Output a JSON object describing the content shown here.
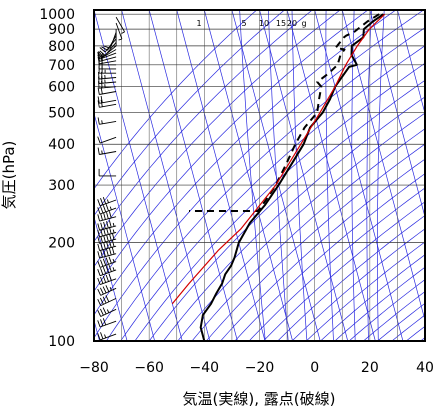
{
  "chart_data": {
    "type": "line",
    "chart_kind": "skew-T log-P aerological diagram",
    "title": "",
    "xlabel": "気温(実線), 露点(破線)",
    "ylabel": "気圧(hPa)",
    "xlim": [
      -80,
      40
    ],
    "ylim": [
      1030,
      100
    ],
    "y_scale": "log",
    "x_ticks": [
      "−80",
      "−60",
      "−40",
      "−20",
      "0",
      "20",
      "40"
    ],
    "x_tick_values": [
      -80,
      -60,
      -40,
      -20,
      0,
      20,
      40
    ],
    "y_ticks": [
      "100",
      "200",
      "300",
      "400",
      "500",
      "600",
      "700",
      "800",
      "900",
      "1000"
    ],
    "y_tick_values": [
      100,
      200,
      300,
      400,
      500,
      600,
      700,
      800,
      900,
      1000
    ],
    "mixing_ratio_labels": [
      "1",
      "5",
      "10",
      "15",
      "20",
      "g"
    ],
    "grid": true,
    "colors": {
      "temperature": "#000000",
      "dewpoint": "#000000",
      "parcel": "#d40000",
      "skew_grid": "#2a2ae0",
      "grid": "#000000"
    },
    "series": [
      {
        "style": "solid",
        "points": [
          {
            "t": 24.5,
            "p": 1000
          },
          {
            "t": 20,
            "p": 950
          },
          {
            "t": 16,
            "p": 900
          },
          {
            "t": 15,
            "p": 850
          },
          {
            "t": 10,
            "p": 800
          },
          {
            "t": 9,
            "p": 750
          },
          {
            "t": 10,
            "p": 700
          },
          {
            "t": 7,
            "p": 690
          },
          {
            "t": 0,
            "p": 600
          },
          {
            "t": -3,
            "p": 550
          },
          {
            "t": -7,
            "p": 500
          },
          {
            "t": -13,
            "p": 450
          },
          {
            "t": -17,
            "p": 400
          },
          {
            "t": -23,
            "p": 350
          },
          {
            "t": -30,
            "p": 300
          },
          {
            "t": -37,
            "p": 260
          },
          {
            "t": -44,
            "p": 230
          },
          {
            "t": -50,
            "p": 200
          },
          {
            "t": -53,
            "p": 180
          },
          {
            "t": -55,
            "p": 170
          },
          {
            "t": -58,
            "p": 160
          },
          {
            "t": -60,
            "p": 150
          },
          {
            "t": -63,
            "p": 140
          },
          {
            "t": -66,
            "p": 130
          },
          {
            "t": -70,
            "p": 120
          },
          {
            "t": -71,
            "p": 115
          },
          {
            "t": -72,
            "p": 110
          },
          {
            "t": -72,
            "p": 105
          },
          {
            "t": -72,
            "p": 100
          }
        ]
      },
      {
        "style": "dashed",
        "points": [
          {
            "t": 23,
            "p": 1000
          },
          {
            "t": 18,
            "p": 950
          },
          {
            "t": 12,
            "p": 880
          },
          {
            "t": 9,
            "p": 860
          },
          {
            "t": 8,
            "p": 850
          },
          {
            "t": 4,
            "p": 790
          },
          {
            "t": 7,
            "p": 780
          },
          {
            "t": 5,
            "p": 750
          },
          {
            "t": 3,
            "p": 700
          },
          {
            "t": -1,
            "p": 660
          },
          {
            "t": -6,
            "p": 620
          },
          {
            "t": -5,
            "p": 600
          },
          {
            "t": -7,
            "p": 550
          },
          {
            "t": -9,
            "p": 500
          },
          {
            "t": -15,
            "p": 450
          },
          {
            "t": -20,
            "p": 400
          },
          {
            "t": -25,
            "p": 350
          },
          {
            "t": -31,
            "p": 300
          },
          {
            "t": -36,
            "p": 270
          },
          {
            "t": -40,
            "p": 250
          },
          {
            "t": -65,
            "p": 250
          }
        ]
      },
      {
        "style": "solid-red",
        "points": [
          {
            "t": 25,
            "p": 1000
          },
          {
            "t": 18,
            "p": 900
          },
          {
            "t": 12,
            "p": 800
          },
          {
            "t": 6,
            "p": 700
          },
          {
            "t": 0,
            "p": 600
          },
          {
            "t": -8,
            "p": 500
          },
          {
            "t": -18,
            "p": 400
          },
          {
            "t": -31,
            "p": 300
          },
          {
            "t": -48,
            "p": 220
          },
          {
            "t": -58,
            "p": 190
          },
          {
            "t": -72,
            "p": 150
          },
          {
            "t": -80,
            "p": 130
          }
        ]
      }
    ],
    "wind_barbs": [
      {
        "p": 105,
        "dir": 250,
        "spd": 25
      },
      {
        "p": 115,
        "dir": 250,
        "spd": 30
      },
      {
        "p": 125,
        "dir": 245,
        "spd": 35
      },
      {
        "p": 135,
        "dir": 245,
        "spd": 40
      },
      {
        "p": 145,
        "dir": 245,
        "spd": 45
      },
      {
        "p": 155,
        "dir": 250,
        "spd": 50
      },
      {
        "p": 165,
        "dir": 250,
        "spd": 55
      },
      {
        "p": 175,
        "dir": 250,
        "spd": 55
      },
      {
        "p": 185,
        "dir": 255,
        "spd": 60
      },
      {
        "p": 195,
        "dir": 255,
        "spd": 60
      },
      {
        "p": 205,
        "dir": 255,
        "spd": 60
      },
      {
        "p": 215,
        "dir": 255,
        "spd": 55
      },
      {
        "p": 225,
        "dir": 255,
        "spd": 55
      },
      {
        "p": 240,
        "dir": 255,
        "spd": 50
      },
      {
        "p": 255,
        "dir": 250,
        "spd": 45
      },
      {
        "p": 270,
        "dir": 250,
        "spd": 35
      },
      {
        "p": 320,
        "dir": 270,
        "spd": 10
      },
      {
        "p": 380,
        "dir": 260,
        "spd": 15
      },
      {
        "p": 420,
        "dir": 250,
        "spd": 10
      },
      {
        "p": 470,
        "dir": 260,
        "spd": 15
      },
      {
        "p": 530,
        "dir": 260,
        "spd": 20
      },
      {
        "p": 545,
        "dir": 260,
        "spd": 20
      },
      {
        "p": 580,
        "dir": 260,
        "spd": 20
      },
      {
        "p": 600,
        "dir": 265,
        "spd": 25
      },
      {
        "p": 620,
        "dir": 265,
        "spd": 25
      },
      {
        "p": 640,
        "dir": 265,
        "spd": 25
      },
      {
        "p": 660,
        "dir": 270,
        "spd": 25
      },
      {
        "p": 680,
        "dir": 270,
        "spd": 20
      },
      {
        "p": 700,
        "dir": 270,
        "spd": 20
      },
      {
        "p": 720,
        "dir": 260,
        "spd": 20
      },
      {
        "p": 740,
        "dir": 255,
        "spd": 20
      },
      {
        "p": 760,
        "dir": 250,
        "spd": 15
      },
      {
        "p": 780,
        "dir": 240,
        "spd": 15
      },
      {
        "p": 800,
        "dir": 230,
        "spd": 10
      },
      {
        "p": 820,
        "dir": 220,
        "spd": 10
      },
      {
        "p": 840,
        "dir": 220,
        "spd": 10
      },
      {
        "p": 860,
        "dir": 210,
        "spd": 10
      },
      {
        "p": 880,
        "dir": 200,
        "spd": 10
      },
      {
        "p": 900,
        "dir": 180,
        "spd": 5
      },
      {
        "p": 940,
        "dir": 160,
        "spd": 5
      },
      {
        "p": 980,
        "dir": 150,
        "spd": 5
      }
    ]
  }
}
